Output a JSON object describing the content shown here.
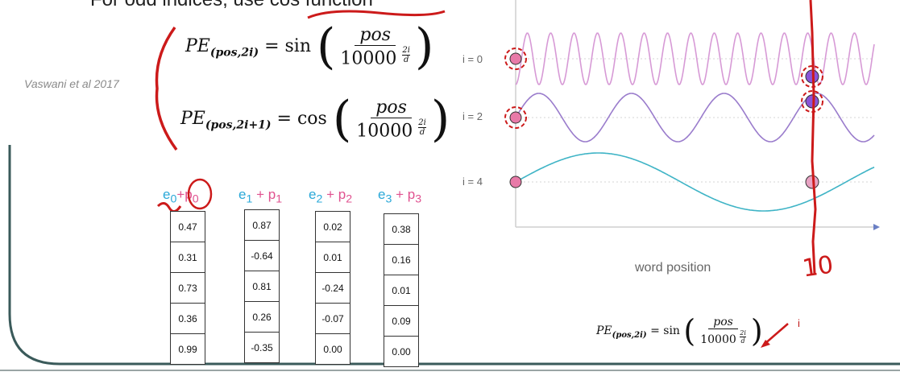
{
  "slide": {
    "top_text": "For odd indices, use cos function",
    "citation": "Vaswani et al 2017"
  },
  "formulas": {
    "pe_even_lhs": "PE",
    "pe_even_sub": "(pos,2i)",
    "pe_even_fn": "= sin",
    "pe_odd_lhs": "PE",
    "pe_odd_sub": "(pos,2i+1)",
    "pe_odd_fn": "= cos",
    "numerator": "pos",
    "denominator": "10000",
    "exp_num": "2i",
    "exp_den": "d"
  },
  "embedding_columns": [
    {
      "e": "e",
      "e_sub": "0",
      "p": "p",
      "p_sub": "0",
      "values": [
        "0.47",
        "0.31",
        "0.73",
        "0.36",
        "0.99"
      ]
    },
    {
      "e": "e",
      "e_sub": "1",
      "p": "p",
      "p_sub": "1",
      "values": [
        "0.87",
        "-0.64",
        "0.81",
        "0.26",
        "-0.35"
      ]
    },
    {
      "e": "e",
      "e_sub": "2",
      "p": "p",
      "p_sub": "2",
      "values": [
        "0.02",
        "0.01",
        "-0.24",
        "-0.07",
        "0.00"
      ]
    },
    {
      "e": "e",
      "e_sub": "3",
      "p": "p",
      "p_sub": "3",
      "values": [
        "0.38",
        "0.16",
        "0.01",
        "0.09",
        "0.00"
      ]
    }
  ],
  "plus": "+",
  "plot": {
    "row_labels": [
      "i = 0",
      "i = 2",
      "i = 4"
    ],
    "xlabel": "word position",
    "colors": {
      "i0": "#d79ad6",
      "i2": "#9a7ccc",
      "i4": "#3fb4c6",
      "annotation": "#cc1a1a",
      "marker": "#e87aa8"
    }
  },
  "annotations": {
    "handwritten_position": "10",
    "arrow_label": "i"
  },
  "colors": {
    "e_text": "#2aa8d8",
    "p_text": "#e0518f",
    "frame": "#3a5a5a"
  }
}
